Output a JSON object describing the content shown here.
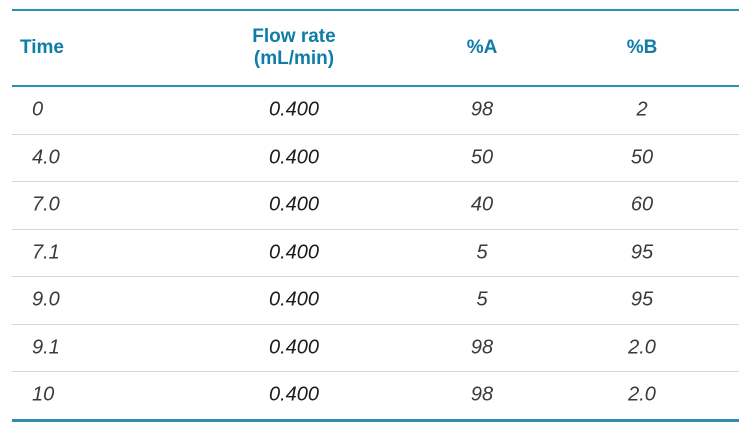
{
  "colors": {
    "header_text": "#0F7DA8",
    "table_rule": "#2E8FB0",
    "row_separator": "#D7D7D7",
    "data_text": "#3A3A3A",
    "flow_rate_text": "#1B1B1B",
    "background": "#FFFFFF"
  },
  "chart_data": {
    "type": "table",
    "columns": [
      "Time",
      "Flow rate\n(mL/min)",
      "%A",
      "%B"
    ],
    "rows": [
      [
        "0",
        "0.400",
        "98",
        "2"
      ],
      [
        "4.0",
        "0.400",
        "50",
        "50"
      ],
      [
        "7.0",
        "0.400",
        "40",
        "60"
      ],
      [
        "7.1",
        "0.400",
        "5",
        "95"
      ],
      [
        "9.0",
        "0.400",
        "5",
        "95"
      ],
      [
        "9.1",
        "0.400",
        "98",
        "2.0"
      ],
      [
        "10",
        "0.400",
        "98",
        "2.0"
      ]
    ]
  }
}
